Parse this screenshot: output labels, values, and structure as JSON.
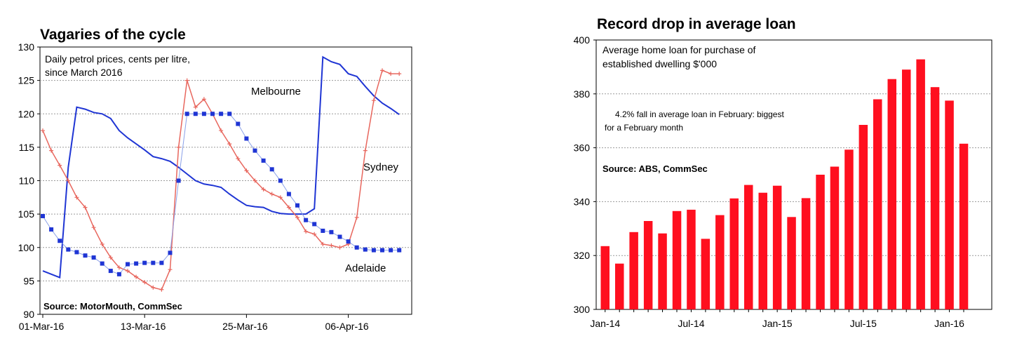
{
  "chart_data": [
    {
      "type": "line",
      "title": "Vagaries of the cycle",
      "subtitle_lines": [
        "Daily petrol prices, cents per litre,",
        "since March 2016"
      ],
      "source": "Source: MotorMouth, CommSec",
      "ylim": [
        90,
        130
      ],
      "y_ticks": [
        90,
        95,
        100,
        105,
        110,
        115,
        120,
        125,
        130
      ],
      "x_tick_labels": [
        "01-Mar-16",
        "13-Mar-16",
        "25-Mar-16",
        "06-Apr-16"
      ],
      "x_tick_day_index": [
        0,
        12,
        24,
        36
      ],
      "grid": true,
      "series": [
        {
          "name": "Melbourne",
          "color": "#1f35d4",
          "marker": "none",
          "x": [
            0,
            1,
            2,
            3,
            4,
            5,
            6,
            7,
            8,
            9,
            10,
            11,
            12,
            13,
            14,
            15,
            16,
            17,
            18,
            19,
            20,
            21,
            22,
            23,
            24,
            25,
            26,
            27,
            28,
            29,
            30,
            31,
            32,
            33,
            34,
            35,
            36,
            37,
            38,
            39,
            40,
            41,
            42
          ],
          "values": [
            96.5,
            96,
            95.5,
            112,
            121,
            120.7,
            120.2,
            120,
            119.3,
            117.5,
            116.4,
            115.5,
            114.6,
            113.6,
            113.3,
            112.9,
            112,
            111,
            110,
            109.5,
            109.3,
            109,
            108,
            107.1,
            106.3,
            106.1,
            106,
            105.4,
            105.1,
            105,
            105,
            105,
            105.8,
            128.5,
            127.8,
            127.4,
            126,
            125.6,
            124.1,
            122.7,
            121.6,
            120.8,
            119.9
          ]
        },
        {
          "name": "Sydney",
          "color": "#e8675e",
          "marker": "plus",
          "x": [
            0,
            1,
            2,
            3,
            4,
            5,
            6,
            7,
            8,
            9,
            10,
            11,
            12,
            13,
            14,
            15,
            16,
            17,
            18,
            19,
            20,
            21,
            22,
            23,
            24,
            25,
            26,
            27,
            28,
            29,
            30,
            31,
            32,
            33,
            34,
            35,
            36,
            37,
            38,
            39,
            40,
            41,
            42
          ],
          "values": [
            117.5,
            114.5,
            112.3,
            110,
            107.5,
            106,
            103,
            100.5,
            98.5,
            97,
            96.5,
            95.6,
            94.8,
            94,
            93.7,
            96.7,
            115,
            125,
            121,
            122.2,
            120,
            117.5,
            115.5,
            113.3,
            111.5,
            110,
            108.7,
            108,
            107.5,
            106,
            104.5,
            102.4,
            102,
            100.5,
            100.3,
            100,
            100.5,
            104.5,
            114.5,
            122,
            126.5,
            126,
            126
          ]
        },
        {
          "name": "Adelaide",
          "color": "#1f35d4",
          "marker": "square",
          "x": [
            0,
            1,
            2,
            3,
            4,
            5,
            6,
            7,
            8,
            9,
            10,
            11,
            12,
            13,
            14,
            15,
            16,
            17,
            18,
            19,
            20,
            21,
            22,
            23,
            24,
            25,
            26,
            27,
            28,
            29,
            30,
            31,
            32,
            33,
            34,
            35,
            36,
            37,
            38,
            39,
            40,
            41,
            42
          ],
          "values": [
            104.7,
            102.7,
            101,
            99.7,
            99.3,
            98.8,
            98.5,
            97.6,
            96.5,
            96,
            97.5,
            97.6,
            97.7,
            97.7,
            97.7,
            99.2,
            110,
            120,
            120,
            120,
            120,
            120,
            120,
            118.5,
            116.3,
            114.5,
            113,
            111.7,
            110,
            108,
            106.3,
            104.1,
            103.5,
            102.5,
            102.3,
            101.6,
            100.9,
            100,
            99.7,
            99.6,
            99.6,
            99.6,
            99.6
          ]
        }
      ]
    },
    {
      "type": "bar",
      "title": "Record drop in average loan",
      "subtitle_lines": [
        "Average home loan for purchase of",
        "established dwelling $'000"
      ],
      "annotation_lines": [
        "4.2% fall in average loan in February: biggest",
        "for a February month"
      ],
      "source": "Source: ABS, CommSec",
      "ylim": [
        300,
        400
      ],
      "y_ticks": [
        300,
        320,
        340,
        360,
        380,
        400
      ],
      "x_tick_labels": [
        "Jan-14",
        "Jul-14",
        "Jan-15",
        "Jul-15",
        "Jan-16"
      ],
      "x_tick_bar_index": [
        0,
        6,
        12,
        18,
        24
      ],
      "color": "#ff0f1f",
      "grid": true,
      "values": [
        323.5,
        317,
        328.7,
        332.8,
        328.2,
        336.5,
        337,
        326.2,
        335,
        341.2,
        346.2,
        343.3,
        345.9,
        334.3,
        341.3,
        350,
        353,
        359.3,
        368.5,
        378,
        385.5,
        389,
        392.8,
        382.5,
        377.5,
        361.5
      ]
    }
  ]
}
